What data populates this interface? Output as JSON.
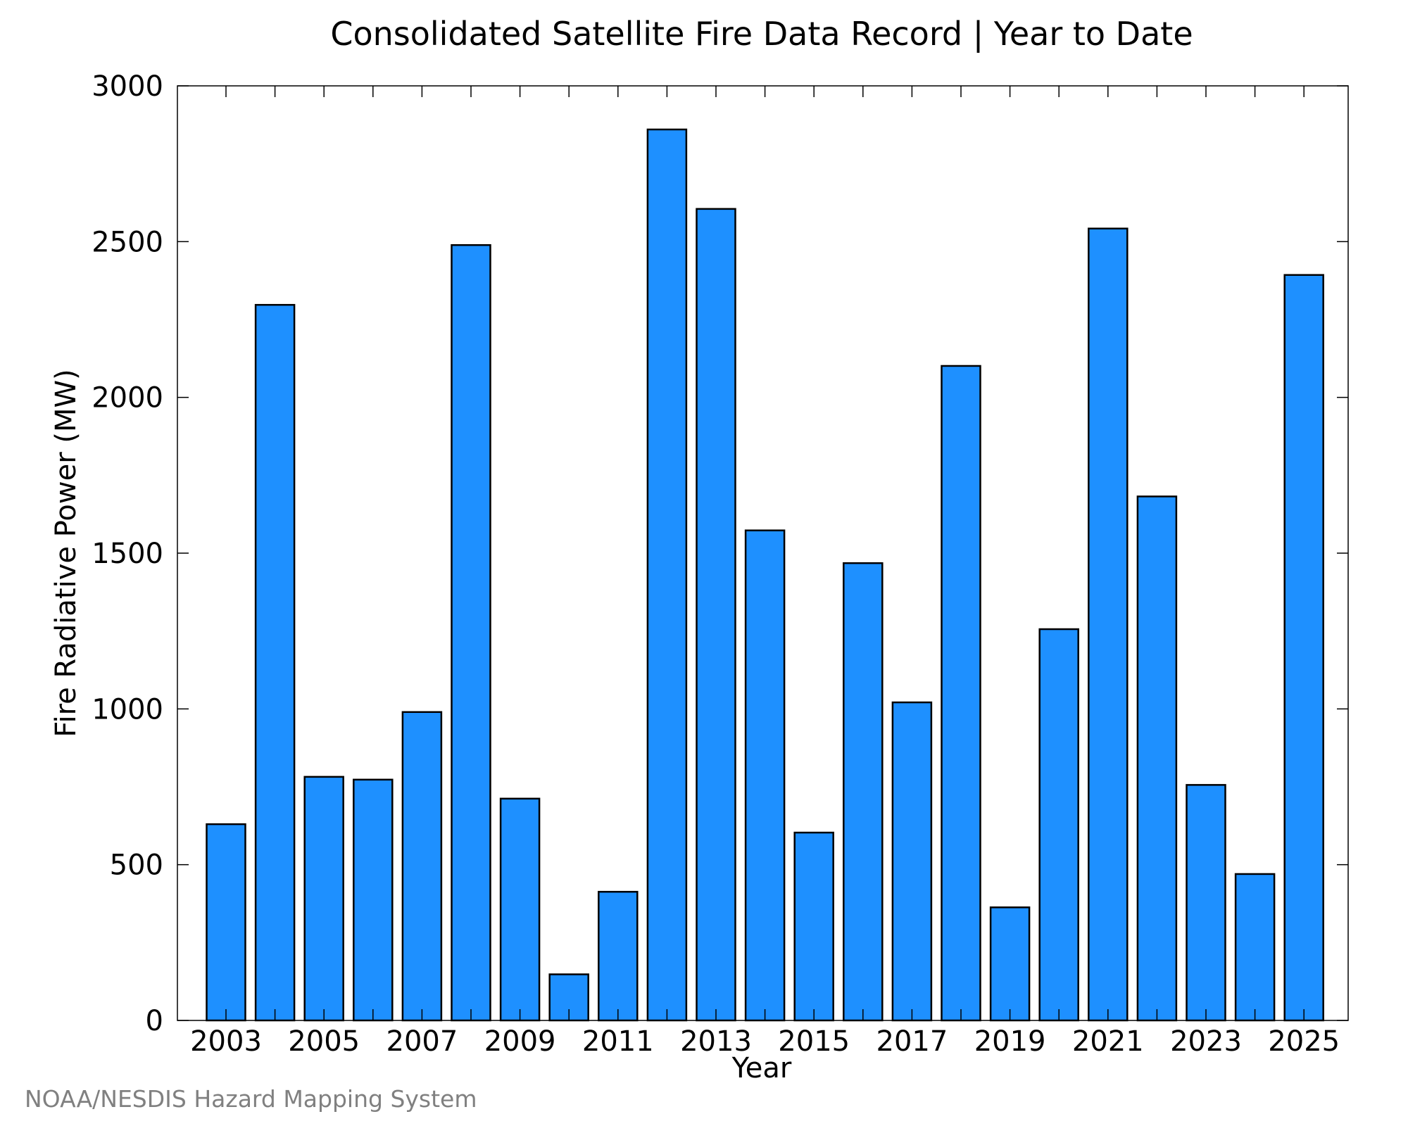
{
  "chart_data": {
    "type": "bar",
    "title": "Consolidated Satellite Fire Data Record | Year to Date",
    "xlabel": "Year",
    "ylabel": "Fire Radiative Power (MW)",
    "categories": [
      2003,
      2004,
      2005,
      2006,
      2007,
      2008,
      2009,
      2010,
      2011,
      2012,
      2013,
      2014,
      2015,
      2016,
      2017,
      2018,
      2019,
      2020,
      2021,
      2022,
      2023,
      2024,
      2025
    ],
    "values": [
      630,
      2297,
      782,
      773,
      990,
      2489,
      712,
      148,
      413,
      2860,
      2605,
      1573,
      603,
      1468,
      1021,
      2101,
      363,
      1256,
      2542,
      1682,
      756,
      470,
      2393
    ],
    "x_tick_labels": [
      "2003",
      "2005",
      "2007",
      "2009",
      "2011",
      "2013",
      "2015",
      "2017",
      "2019",
      "2021",
      "2023",
      "2025"
    ],
    "ylim": [
      0,
      3000
    ],
    "y_ticks": [
      0,
      500,
      1000,
      1500,
      2000,
      2500,
      3000
    ],
    "y_tick_labels": [
      "0",
      "500",
      "1000",
      "1500",
      "2000",
      "2500",
      "3000"
    ],
    "bar_color": "#1e90ff",
    "edge_color": "#000000",
    "grid": false,
    "legend": "none"
  },
  "footer": {
    "source": "NOAA/NESDIS Hazard Mapping System"
  }
}
